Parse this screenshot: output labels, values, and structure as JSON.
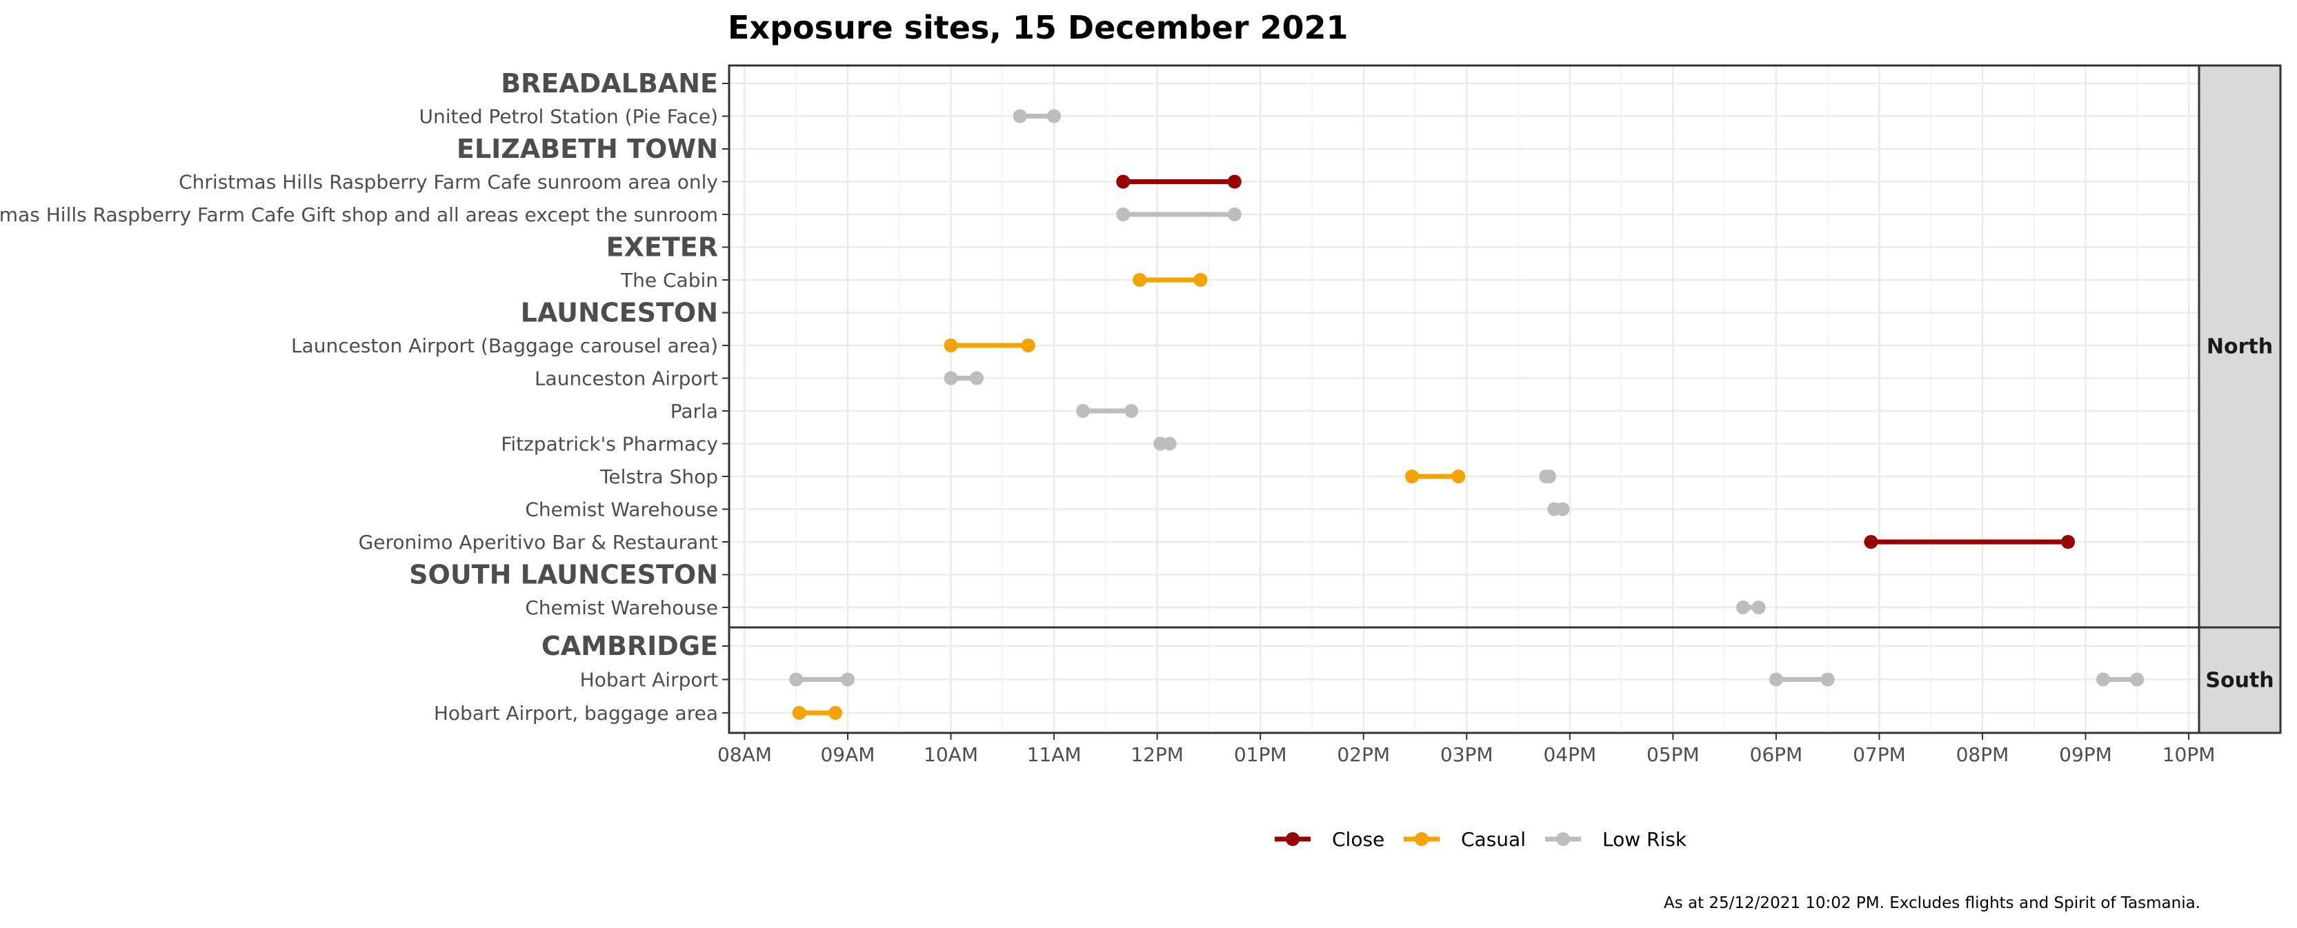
{
  "chart_data": {
    "type": "dumbbell",
    "title": "Exposure sites, 15 December 2021",
    "caption": "As at 25/12/2021 10:02 PM. Excludes flights and Spirit of Tasmania.",
    "x_ticks": [
      "08AM",
      "09AM",
      "10AM",
      "11AM",
      "12PM",
      "01PM",
      "02PM",
      "03PM",
      "04PM",
      "05PM",
      "06PM",
      "07PM",
      "08PM",
      "09PM",
      "10PM"
    ],
    "xlim": [
      7.85,
      22.1
    ],
    "grid": true,
    "legend": {
      "position": "bottom",
      "entries": [
        {
          "key": "Close",
          "label": "Close"
        },
        {
          "key": "Casual",
          "label": "Casual"
        },
        {
          "key": "Low Risk",
          "label": "Low Risk"
        }
      ]
    },
    "colors": {
      "Close": "#990000",
      "Casual": "#f5a300",
      "Low Risk": "#bdbdbd"
    },
    "panels": [
      {
        "name": "North",
        "rows": [
          {
            "label": "BREADALBANE",
            "group": true
          },
          {
            "label": "United Petrol Station (Pie Face)",
            "segments": [
              {
                "start": 10.67,
                "end": 11.0,
                "risk": "Low Risk"
              }
            ]
          },
          {
            "label": "ELIZABETH TOWN",
            "group": true
          },
          {
            "label": "Christmas Hills Raspberry Farm Cafe sunroom area only",
            "segments": [
              {
                "start": 11.67,
                "end": 12.75,
                "risk": "Close"
              }
            ]
          },
          {
            "label": "Christmas Hills Raspberry Farm Cafe Gift shop and all areas except the sunroom",
            "segments": [
              {
                "start": 11.67,
                "end": 12.75,
                "risk": "Low Risk"
              }
            ]
          },
          {
            "label": "EXETER",
            "group": true
          },
          {
            "label": "The Cabin",
            "segments": [
              {
                "start": 11.83,
                "end": 12.42,
                "risk": "Casual"
              }
            ]
          },
          {
            "label": "LAUNCESTON",
            "group": true
          },
          {
            "label": "Launceston Airport (Baggage carousel area)",
            "segments": [
              {
                "start": 10.0,
                "end": 10.75,
                "risk": "Casual"
              }
            ]
          },
          {
            "label": "Launceston Airport",
            "segments": [
              {
                "start": 10.0,
                "end": 10.25,
                "risk": "Low Risk"
              }
            ]
          },
          {
            "label": "Parla",
            "segments": [
              {
                "start": 11.28,
                "end": 11.75,
                "risk": "Low Risk"
              }
            ]
          },
          {
            "label": "Fitzpatrick's Pharmacy",
            "segments": [
              {
                "start": 12.03,
                "end": 12.12,
                "risk": "Low Risk"
              }
            ]
          },
          {
            "label": "Telstra Shop",
            "segments": [
              {
                "start": 14.47,
                "end": 14.92,
                "risk": "Casual"
              },
              {
                "start": 15.77,
                "end": 15.8,
                "risk": "Low Risk"
              }
            ]
          },
          {
            "label": "Chemist Warehouse",
            "segments": [
              {
                "start": 15.85,
                "end": 15.93,
                "risk": "Low Risk"
              }
            ]
          },
          {
            "label": "Geronimo Aperitivo Bar & Restaurant",
            "segments": [
              {
                "start": 18.92,
                "end": 20.83,
                "risk": "Close"
              }
            ]
          },
          {
            "label": "SOUTH LAUNCESTON",
            "group": true
          },
          {
            "label": "Chemist Warehouse",
            "segments": [
              {
                "start": 17.68,
                "end": 17.83,
                "risk": "Low Risk"
              }
            ]
          }
        ]
      },
      {
        "name": "South",
        "rows": [
          {
            "label": "CAMBRIDGE",
            "group": true
          },
          {
            "label": "Hobart Airport",
            "segments": [
              {
                "start": 8.5,
                "end": 9.0,
                "risk": "Low Risk"
              },
              {
                "start": 18.0,
                "end": 18.5,
                "risk": "Low Risk"
              },
              {
                "start": 21.17,
                "end": 21.5,
                "risk": "Low Risk"
              }
            ]
          },
          {
            "label": "Hobart Airport, baggage area",
            "segments": [
              {
                "start": 8.53,
                "end": 8.88,
                "risk": "Casual"
              }
            ]
          }
        ]
      }
    ]
  }
}
